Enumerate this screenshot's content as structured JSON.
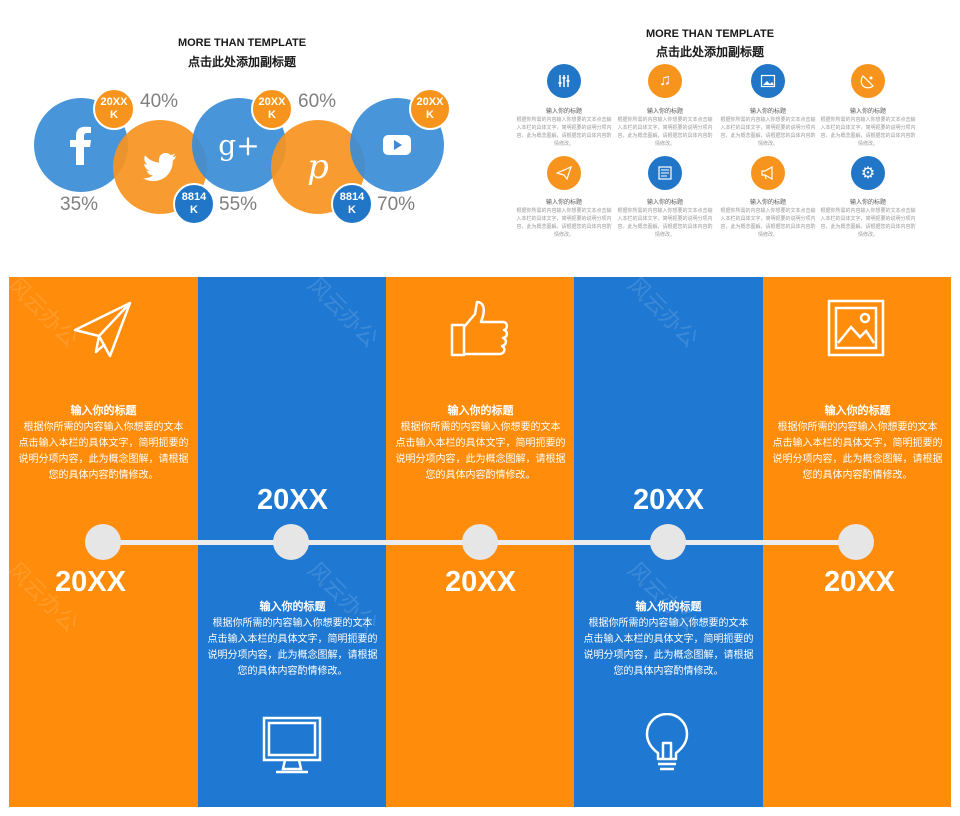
{
  "social": {
    "title": "MORE THAN TEMPLATE",
    "subtitle": "点击此处添加副标题",
    "items": [
      {
        "icon": "facebook-icon",
        "percent": "35%",
        "badge": "20XX\nK"
      },
      {
        "icon": "twitter-icon",
        "percent": "40%",
        "badge": "8814\nK"
      },
      {
        "icon": "google-plus-icon",
        "percent": "55%",
        "badge": "20XX\nK"
      },
      {
        "icon": "pinterest-icon",
        "percent": "60%",
        "badge": "8814\nK"
      },
      {
        "icon": "youtube-icon",
        "percent": "70%",
        "badge": "20XX\nK"
      }
    ],
    "badges": {
      "b1l1": "20XX",
      "b1l2": "K",
      "b2l1": "8814",
      "b2l2": "K",
      "b3l1": "20XX",
      "b3l2": "K",
      "b4l1": "8814",
      "b4l2": "K",
      "b5l1": "20XX",
      "b5l2": "K"
    },
    "percents": {
      "p1": "35%",
      "p2": "40%",
      "p3": "55%",
      "p4": "60%",
      "p5": "70%"
    }
  },
  "grid": {
    "title": "MORE THAN TEMPLATE",
    "subtitle": "点击此处添加副标题",
    "cell_title": "输入你的标题",
    "cell_body": "根据你所需的内容输入你想要的文本点击输入本栏的具体文字，简明扼要的说明分项内容，此为概念图解，请根据您的具体内容酌情修改。"
  },
  "timeline": {
    "col_title": "输入你的标题",
    "col_body_l1": "根据你所需的内容输入你想要的文本",
    "col_body_l2": "点击输入本栏的具体文字，简明扼要的",
    "col_body_l3": "说明分项内容，此为概念图解，请根据",
    "col_body_l4": "您的具体内容酌情修改。",
    "year": "20XX",
    "watermark": "风云办公"
  },
  "colors": {
    "orange": "#ff8c0a",
    "blue": "#1f78d1",
    "line": "#ececec"
  }
}
